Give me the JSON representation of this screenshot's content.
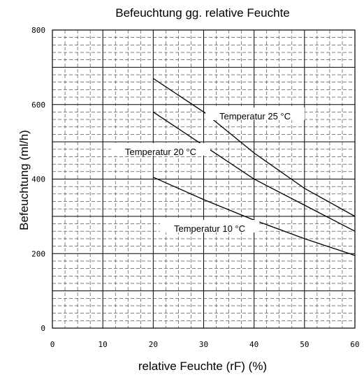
{
  "chart_data": {
    "type": "line",
    "title": "Befeuchtung gg. relative Feuchte",
    "xlabel": "relative Feuchte (rF) (%)",
    "ylabel": "Befeuchtung (ml/h)",
    "xlim": [
      0,
      60
    ],
    "ylim": [
      0,
      800
    ],
    "xticks": [
      0,
      10,
      20,
      30,
      40,
      50,
      60
    ],
    "yticks": [
      0,
      200,
      400,
      600,
      800
    ],
    "grid": true,
    "legend": "inline-labels",
    "series": [
      {
        "name": "Temperatur 25 °C",
        "x": [
          20,
          30,
          40,
          50,
          60
        ],
        "y": [
          670,
          580,
          470,
          375,
          300
        ]
      },
      {
        "name": "Temperatur 20 °C",
        "x": [
          20,
          30,
          40,
          50,
          60
        ],
        "y": [
          580,
          490,
          400,
          330,
          260
        ]
      },
      {
        "name": "Temperatur 10 °C",
        "x": [
          20,
          30,
          40,
          50,
          60
        ],
        "y": [
          405,
          345,
          290,
          240,
          195
        ]
      }
    ]
  }
}
